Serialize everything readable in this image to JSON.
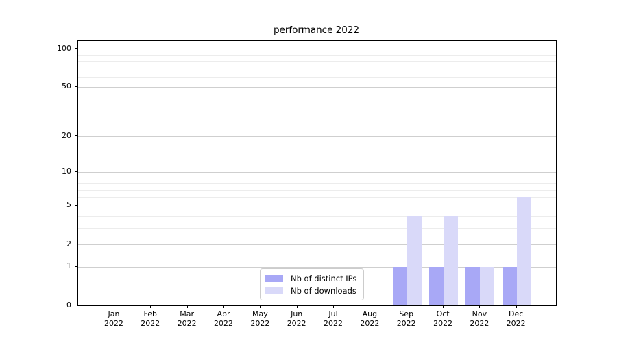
{
  "chart_data": {
    "type": "bar",
    "title": "performance 2022",
    "categories": [
      "Jan",
      "Feb",
      "Mar",
      "Apr",
      "May",
      "Jun",
      "Jul",
      "Aug",
      "Sep",
      "Oct",
      "Nov",
      "Dec"
    ],
    "category_year": "2022",
    "series": [
      {
        "name": "Nb of distinct IPs",
        "color": "#a8a8f6",
        "values": [
          0,
          0,
          0,
          0,
          0,
          0,
          0,
          0,
          1,
          1,
          1,
          1
        ]
      },
      {
        "name": "Nb of downloads",
        "color": "#d9d9f9",
        "values": [
          0,
          0,
          0,
          0,
          0,
          0,
          0,
          0,
          4,
          4,
          1,
          6
        ]
      }
    ],
    "y_axis": {
      "scale": "log1p",
      "major_ticks": [
        100,
        50,
        20,
        10,
        5,
        2,
        1,
        0
      ],
      "minor_ticks": [
        3,
        4,
        6,
        7,
        8,
        9,
        30,
        40,
        60,
        70,
        80,
        90
      ],
      "max": 115
    },
    "x_axis": {
      "label_lines": 2
    },
    "grid": "horizontal",
    "legend": {
      "position": "bottom-center-inside"
    }
  }
}
